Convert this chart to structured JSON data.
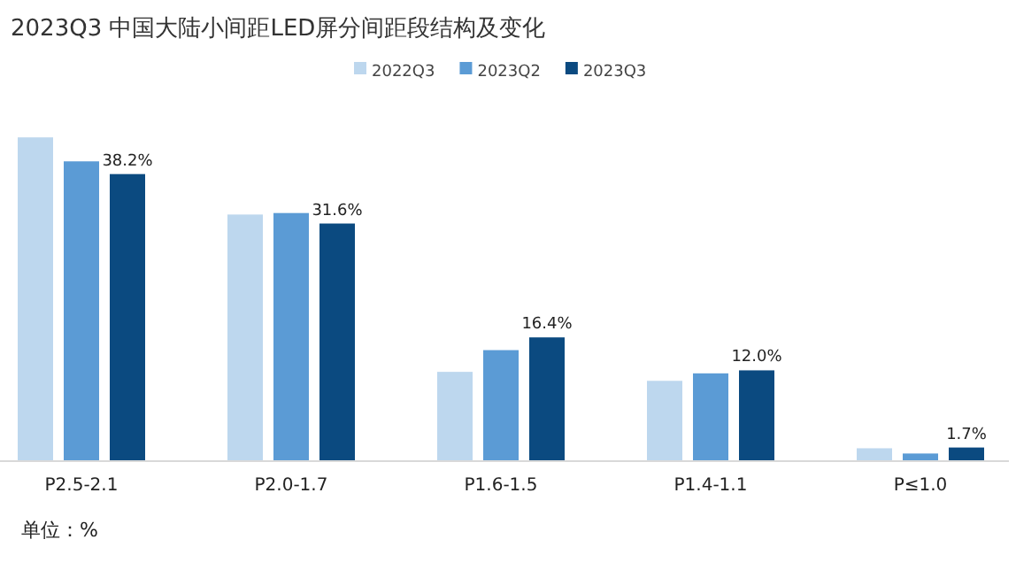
{
  "chart_data": {
    "type": "bar",
    "title": "2023Q3 中国大陆小间距LED屏分间距段结构及变化",
    "categories": [
      "P2.5-2.1",
      "P2.0-1.7",
      "P1.6-1.5",
      "P1.4-1.1",
      "P≤1.0"
    ],
    "series": [
      {
        "name": "2022Q3",
        "color": "#bdd7ee",
        "values": [
          43.1,
          32.8,
          11.8,
          10.6,
          1.6
        ]
      },
      {
        "name": "2023Q2",
        "color": "#5b9bd5",
        "values": [
          39.9,
          33.0,
          14.7,
          11.6,
          0.9
        ]
      },
      {
        "name": "2023Q3",
        "color": "#0b4a80",
        "values": [
          38.2,
          31.6,
          16.4,
          12.0,
          1.7
        ],
        "value_labels": [
          "38.2%",
          "31.6%",
          "16.4%",
          "12.0%",
          "1.7%"
        ]
      }
    ],
    "legend": "top",
    "grid": false,
    "annotations": [
      "单位：%"
    ]
  }
}
